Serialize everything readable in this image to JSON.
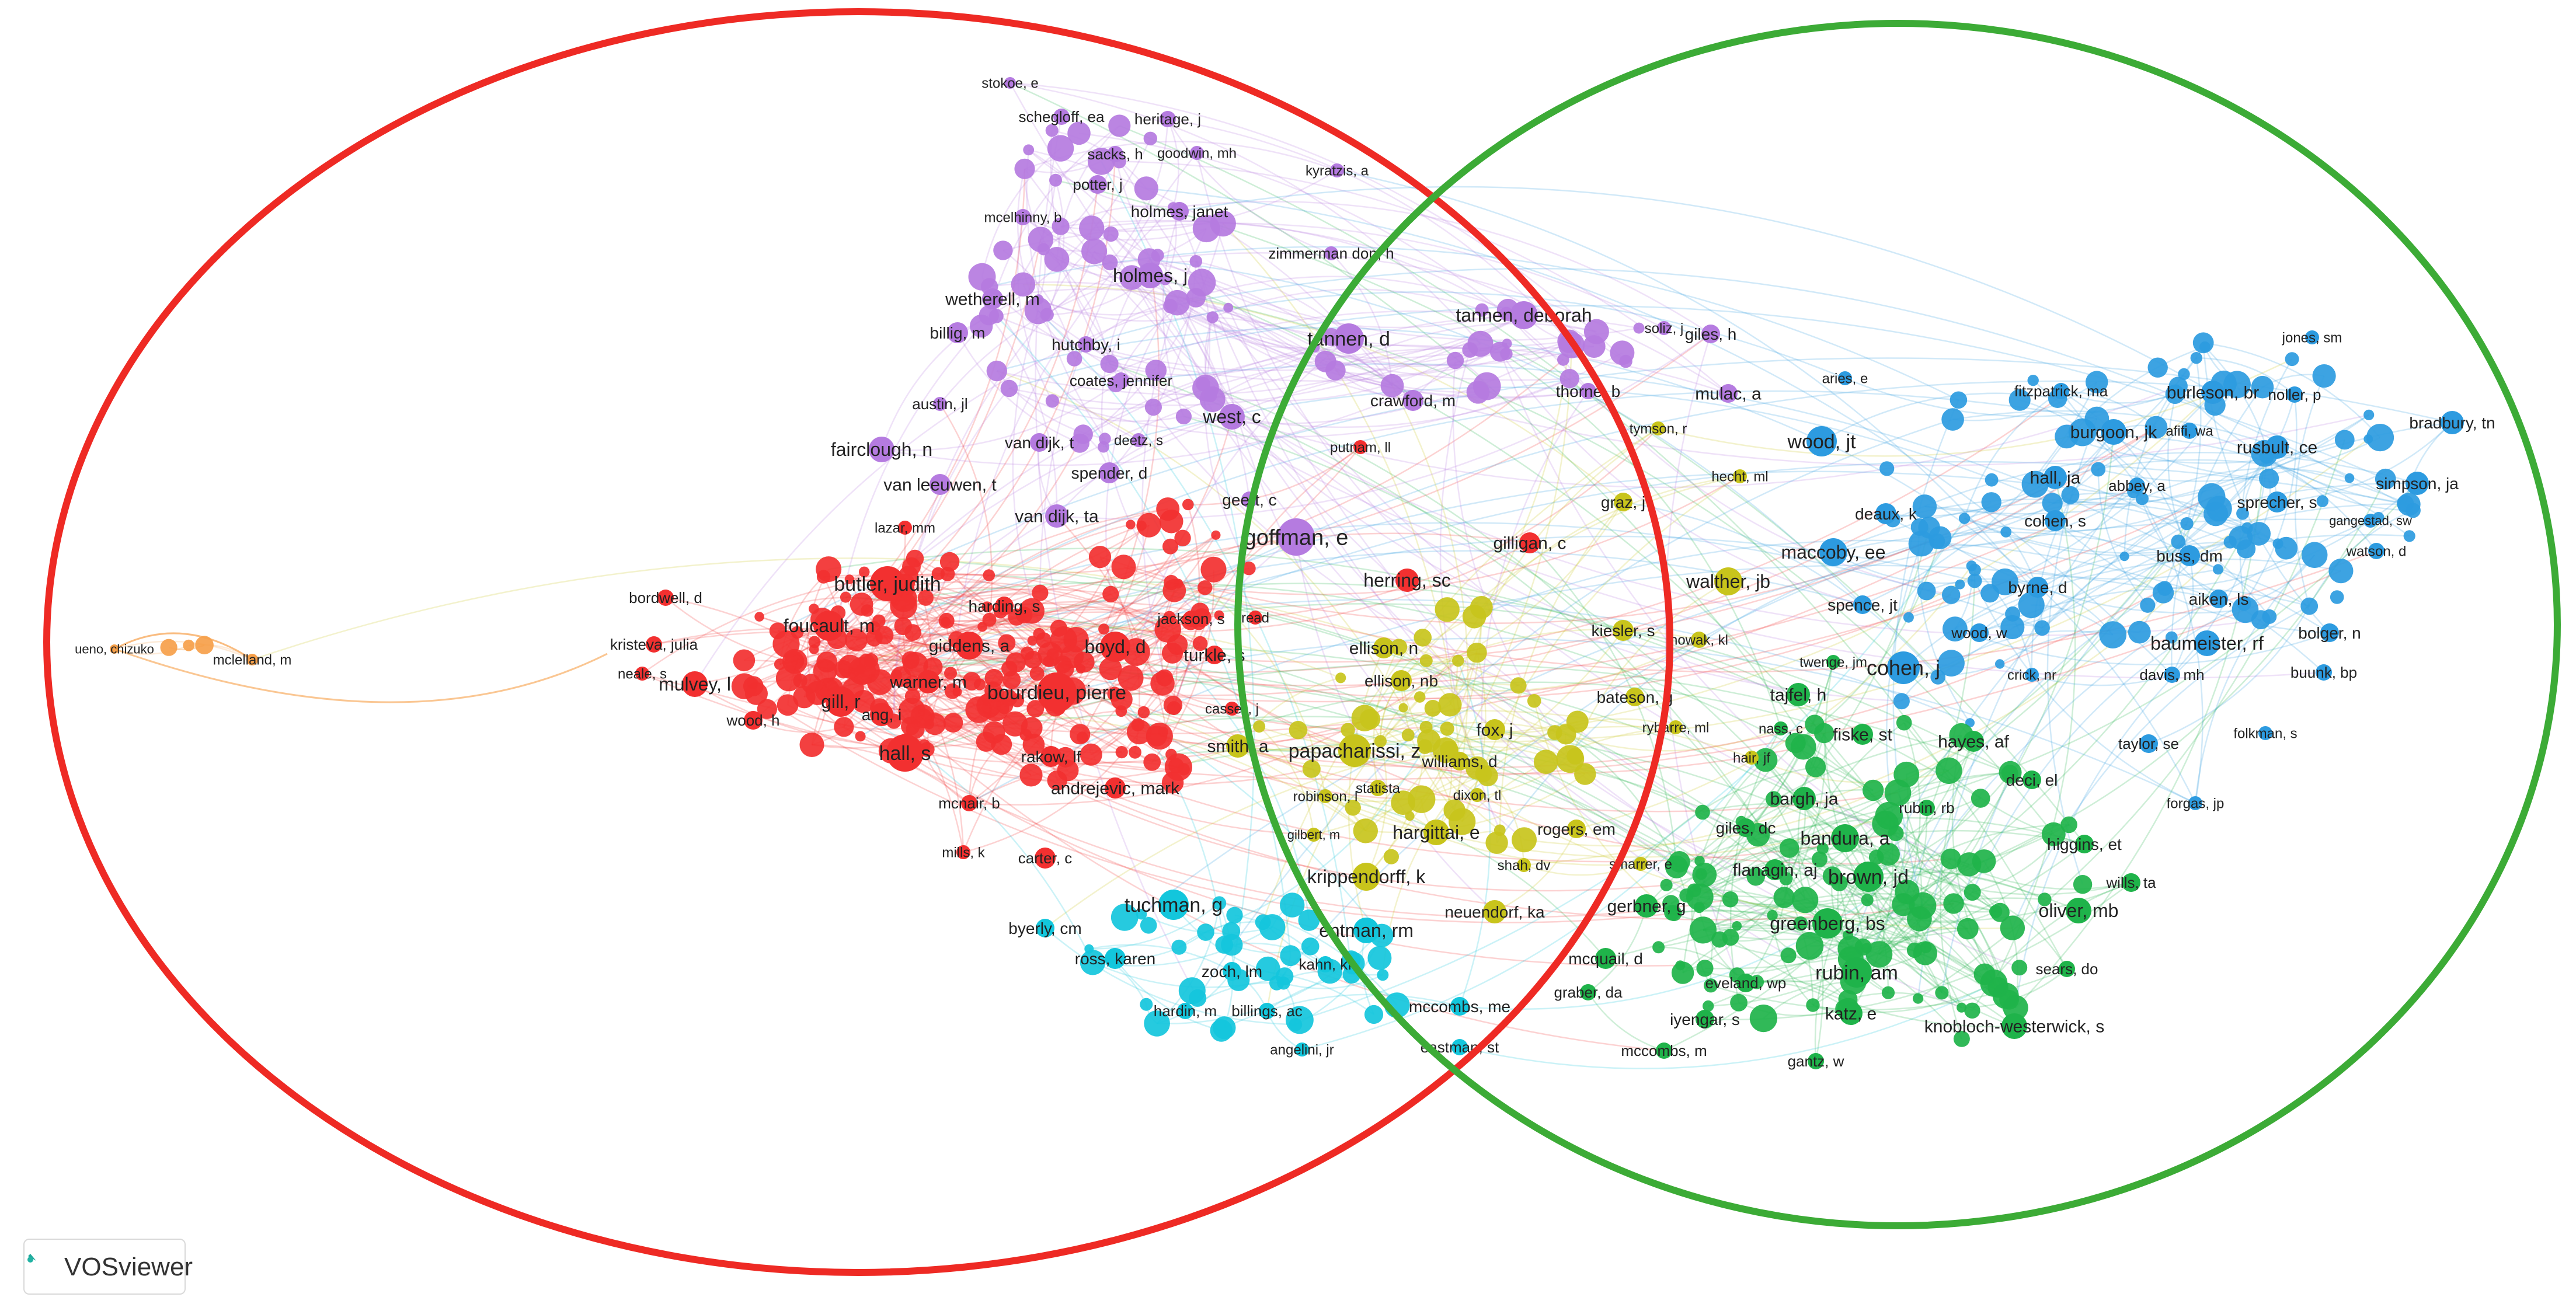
{
  "app": {
    "logo_label": "VOSviewer"
  },
  "colors": {
    "red": "#f23030",
    "purple": "#b57be0",
    "blue": "#2d9be0",
    "green": "#1fb34a",
    "cyan": "#13c6dc",
    "olive": "#c8c41c",
    "orange": "#f6a04a",
    "ellipse_red": "#ee2a24",
    "ellipse_green": "#3cab36"
  },
  "clusters": {
    "red": [
      [
        "butler, judith",
        1520,
        1000,
        30,
        34
      ],
      [
        "foucault, m",
        1420,
        1072,
        26,
        32
      ],
      [
        "giddens, a",
        1660,
        1106,
        24,
        30
      ],
      [
        "bordwell, d",
        1140,
        1024,
        14,
        26
      ],
      [
        "kristeva, julia",
        1120,
        1104,
        14,
        26
      ],
      [
        "neale, s",
        1100,
        1154,
        12,
        24
      ],
      [
        "mulvey, l",
        1190,
        1172,
        22,
        32
      ],
      [
        "gill, r",
        1440,
        1202,
        26,
        32
      ],
      [
        "warner, m",
        1590,
        1168,
        20,
        30
      ],
      [
        "ang, i",
        1510,
        1224,
        20,
        28
      ],
      [
        "wood, h",
        1290,
        1234,
        16,
        26
      ],
      [
        "hall, s",
        1550,
        1290,
        32,
        34
      ],
      [
        "bourdieu, pierre",
        1810,
        1186,
        34,
        34
      ],
      [
        "boyd, d",
        1910,
        1108,
        26,
        32
      ],
      [
        "harding, s",
        1720,
        1038,
        16,
        28
      ],
      [
        "rakow, lf",
        1800,
        1296,
        18,
        28
      ],
      [
        "andrejevic, mark",
        1910,
        1350,
        18,
        30
      ],
      [
        "mcnair, b",
        1660,
        1376,
        14,
        26
      ],
      [
        "mills, k",
        1650,
        1460,
        12,
        24
      ],
      [
        "carter, c",
        1790,
        1470,
        18,
        26
      ],
      [
        "jackson, s",
        2040,
        1060,
        14,
        26
      ],
      [
        "turkle, s",
        2080,
        1122,
        16,
        30
      ],
      [
        "cassell, j",
        2110,
        1214,
        12,
        24
      ],
      [
        "putnam, ll",
        2330,
        766,
        12,
        24
      ],
      [
        "lazar, mm",
        1550,
        904,
        12,
        24
      ],
      [
        "read",
        2150,
        1058,
        12,
        24
      ],
      [
        "herring, sc",
        2410,
        994,
        20,
        32
      ],
      [
        "gilligan, c",
        2620,
        930,
        18,
        30
      ]
    ],
    "purple": [
      [
        "stokoe, e",
        1730,
        142,
        10,
        24
      ],
      [
        "schegloff, ea",
        1818,
        200,
        14,
        26
      ],
      [
        "heritage, j",
        2000,
        204,
        14,
        26
      ],
      [
        "sacks, h",
        1910,
        264,
        14,
        26
      ],
      [
        "goodwin, mh",
        2050,
        262,
        12,
        24
      ],
      [
        "kyratzis, a",
        2290,
        292,
        12,
        24
      ],
      [
        "potter, j",
        1880,
        316,
        16,
        26
      ],
      [
        "mcelhinny, b",
        1752,
        372,
        14,
        24
      ],
      [
        "holmes, janet",
        2020,
        362,
        16,
        28
      ],
      [
        "zimmerman don, h",
        2280,
        434,
        12,
        26
      ],
      [
        "holmes, j",
        1970,
        472,
        22,
        32
      ],
      [
        "wetherell, m",
        1700,
        512,
        18,
        30
      ],
      [
        "tannen, deborah",
        2610,
        540,
        24,
        32
      ],
      [
        "billig, m",
        1640,
        570,
        18,
        28
      ],
      [
        "hutchby, i",
        1860,
        590,
        14,
        28
      ],
      [
        "tannen, d",
        2310,
        580,
        26,
        34
      ],
      [
        "soliz, j",
        2850,
        562,
        12,
        24
      ],
      [
        "giles, h",
        2930,
        572,
        16,
        28
      ],
      [
        "coates, jennifer",
        1920,
        652,
        14,
        26
      ],
      [
        "crawford, m",
        2420,
        686,
        18,
        28
      ],
      [
        "thorne, b",
        2720,
        670,
        14,
        28
      ],
      [
        "austin, jl",
        1610,
        692,
        12,
        26
      ],
      [
        "west, c",
        2110,
        714,
        22,
        32
      ],
      [
        "mulac, a",
        2960,
        674,
        16,
        30
      ],
      [
        "fairclough, n",
        1510,
        770,
        22,
        32
      ],
      [
        "van dijk, t",
        1780,
        758,
        16,
        28
      ],
      [
        "deetz, s",
        1950,
        754,
        12,
        24
      ],
      [
        "spender, d",
        1900,
        810,
        18,
        28
      ],
      [
        "van leeuwen, t",
        1610,
        830,
        18,
        30
      ],
      [
        "geert, c",
        2140,
        856,
        14,
        28
      ],
      [
        "van dijk, ta",
        1810,
        884,
        20,
        30
      ],
      [
        "goffman, e",
        2220,
        920,
        32,
        38
      ]
    ],
    "blue": [
      [
        "jones, sm",
        3960,
        578,
        12,
        24
      ],
      [
        "aries, e",
        3160,
        648,
        12,
        24
      ],
      [
        "fitzpatrick, ma",
        3530,
        670,
        14,
        26
      ],
      [
        "burleson, br",
        3790,
        672,
        20,
        30
      ],
      [
        "noller, p",
        3930,
        676,
        14,
        26
      ],
      [
        "bradbury, tn",
        4200,
        724,
        20,
        28
      ],
      [
        "burgoon, jk",
        3620,
        740,
        22,
        30
      ],
      [
        "afifi, wa",
        3750,
        738,
        14,
        24
      ],
      [
        "wood, jt",
        3120,
        756,
        26,
        34
      ],
      [
        "rusbult, ce",
        3900,
        766,
        20,
        30
      ],
      [
        "hall, ja",
        3520,
        818,
        20,
        30
      ],
      [
        "abbey, a",
        3660,
        832,
        14,
        26
      ],
      [
        "simpson, ja",
        4140,
        828,
        20,
        28
      ],
      [
        "sprecher, s",
        3900,
        860,
        18,
        28
      ],
      [
        "gangestad, sw",
        4060,
        892,
        12,
        22
      ],
      [
        "deaux, k",
        3230,
        880,
        18,
        28
      ],
      [
        "cohen, s",
        3520,
        892,
        18,
        28
      ],
      [
        "watson, d",
        4070,
        944,
        14,
        24
      ],
      [
        "maccoby, ee",
        3140,
        946,
        24,
        32
      ],
      [
        "buss, dm",
        3750,
        952,
        18,
        28
      ],
      [
        "byrne, d",
        3490,
        1006,
        18,
        28
      ],
      [
        "aiken, ls",
        3800,
        1026,
        16,
        28
      ],
      [
        "spence, jt",
        3190,
        1036,
        16,
        28
      ],
      [
        "wood, w",
        3390,
        1084,
        16,
        26
      ],
      [
        "bolger, n",
        3990,
        1084,
        16,
        28
      ],
      [
        "baumeister, rf",
        3780,
        1102,
        22,
        32
      ],
      [
        "cohen, j",
        3260,
        1144,
        28,
        36
      ],
      [
        "crick, nr",
        3480,
        1156,
        12,
        24
      ],
      [
        "davis, mh",
        3720,
        1156,
        14,
        26
      ],
      [
        "buunk, bp",
        3980,
        1152,
        14,
        26
      ],
      [
        "folkman, s",
        3880,
        1256,
        12,
        24
      ],
      [
        "taylor, se",
        3680,
        1274,
        16,
        26
      ],
      [
        "forgas, jp",
        3760,
        1376,
        12,
        24
      ]
    ],
    "green": [
      [
        "tajfel, h",
        3080,
        1190,
        20,
        30
      ],
      [
        "twenge, jm",
        3140,
        1134,
        12,
        24
      ],
      [
        "nass, c",
        3050,
        1248,
        12,
        24
      ],
      [
        "fiske, st",
        3190,
        1258,
        18,
        30
      ],
      [
        "hayes, af",
        3380,
        1270,
        18,
        30
      ],
      [
        "deci, el",
        3480,
        1336,
        16,
        28
      ],
      [
        "bargh, ja",
        3090,
        1368,
        20,
        30
      ],
      [
        "rubin, rb",
        3300,
        1384,
        14,
        26
      ],
      [
        "giles, dc",
        2990,
        1418,
        16,
        28
      ],
      [
        "higgins, et",
        3570,
        1446,
        16,
        28
      ],
      [
        "bandura, a",
        3160,
        1436,
        24,
        32
      ],
      [
        "flanagin, aj",
        3040,
        1490,
        18,
        30
      ],
      [
        "wills, ta",
        3650,
        1512,
        16,
        26
      ],
      [
        "brown, jd",
        3200,
        1502,
        26,
        34
      ],
      [
        "gerbner, g",
        2820,
        1552,
        20,
        30
      ],
      [
        "oliver, mb",
        3560,
        1560,
        22,
        32
      ],
      [
        "greenberg, bs",
        3130,
        1582,
        26,
        32
      ],
      [
        "mcquail, d",
        2750,
        1642,
        18,
        28
      ],
      [
        "rubin, am",
        3180,
        1666,
        26,
        34
      ],
      [
        "sears, do",
        3540,
        1660,
        14,
        26
      ],
      [
        "graber, da",
        2720,
        1700,
        14,
        26
      ],
      [
        "eveland, wp",
        2990,
        1684,
        16,
        26
      ],
      [
        "iyengar, s",
        2920,
        1746,
        16,
        28
      ],
      [
        "katz, e",
        3170,
        1736,
        20,
        30
      ],
      [
        "knobloch-westerwick, s",
        3450,
        1758,
        22,
        30
      ],
      [
        "mccombs, m",
        2850,
        1800,
        14,
        26
      ],
      [
        "gantz, w",
        3110,
        1818,
        14,
        26
      ]
    ],
    "cyan": [
      [
        "tuchman, g",
        2010,
        1550,
        26,
        34
      ],
      [
        "byerly, cm",
        1790,
        1590,
        16,
        28
      ],
      [
        "entman, rm",
        2340,
        1594,
        22,
        32
      ],
      [
        "ross, karen",
        1910,
        1642,
        18,
        28
      ],
      [
        "zoch, lm",
        2110,
        1664,
        16,
        28
      ],
      [
        "kahn, kf",
        2270,
        1652,
        14,
        26
      ],
      [
        "hardin, m",
        2030,
        1732,
        14,
        26
      ],
      [
        "billings, ac",
        2170,
        1732,
        14,
        26
      ],
      [
        "mccombs, me",
        2500,
        1724,
        16,
        28
      ],
      [
        "angelini, jr",
        2230,
        1798,
        12,
        24
      ],
      [
        "eastman, st",
        2500,
        1794,
        14,
        26
      ]
    ],
    "olive": [
      [
        "ellison, n",
        2370,
        1110,
        18,
        30
      ],
      [
        "ellison, nb",
        2400,
        1166,
        18,
        28
      ],
      [
        "kiesler, s",
        2780,
        1080,
        18,
        28
      ],
      [
        "nowak, kl",
        2910,
        1096,
        14,
        24
      ],
      [
        "walther, jb",
        2960,
        996,
        24,
        32
      ],
      [
        "graz, j",
        2780,
        860,
        16,
        28
      ],
      [
        "hecht, ml",
        2980,
        816,
        12,
        24
      ],
      [
        "bateson, g",
        2800,
        1194,
        16,
        28
      ],
      [
        "tymson, r",
        2840,
        734,
        12,
        24
      ],
      [
        "fox, j",
        2560,
        1250,
        18,
        30
      ],
      [
        "papacharissi, z",
        2320,
        1286,
        28,
        34
      ],
      [
        "smith, a",
        2120,
        1278,
        20,
        30
      ],
      [
        "rybarre, ml",
        2870,
        1246,
        12,
        24
      ],
      [
        "williams, d",
        2500,
        1304,
        16,
        28
      ],
      [
        "hair, jf",
        3000,
        1298,
        12,
        24
      ],
      [
        "statista",
        2360,
        1350,
        14,
        24
      ],
      [
        "robinson, l",
        2270,
        1364,
        12,
        24
      ],
      [
        "dixon, tl",
        2530,
        1362,
        12,
        24
      ],
      [
        "rogers, em",
        2700,
        1420,
        16,
        28
      ],
      [
        "hargittai, e",
        2460,
        1426,
        22,
        32
      ],
      [
        "gilbert, m",
        2250,
        1430,
        12,
        22
      ],
      [
        "shah, dv",
        2610,
        1482,
        12,
        24
      ],
      [
        "smarrer, e",
        2810,
        1480,
        12,
        24
      ],
      [
        "krippendorff, k",
        2340,
        1502,
        24,
        32
      ],
      [
        "neuendorf, ka",
        2560,
        1562,
        20,
        28
      ]
    ],
    "orange": [
      [
        "ueno, chizuko",
        196,
        1112,
        8,
        22
      ],
      [
        "mclelland, m",
        432,
        1130,
        10,
        24
      ]
    ]
  },
  "filler_count": 420
}
